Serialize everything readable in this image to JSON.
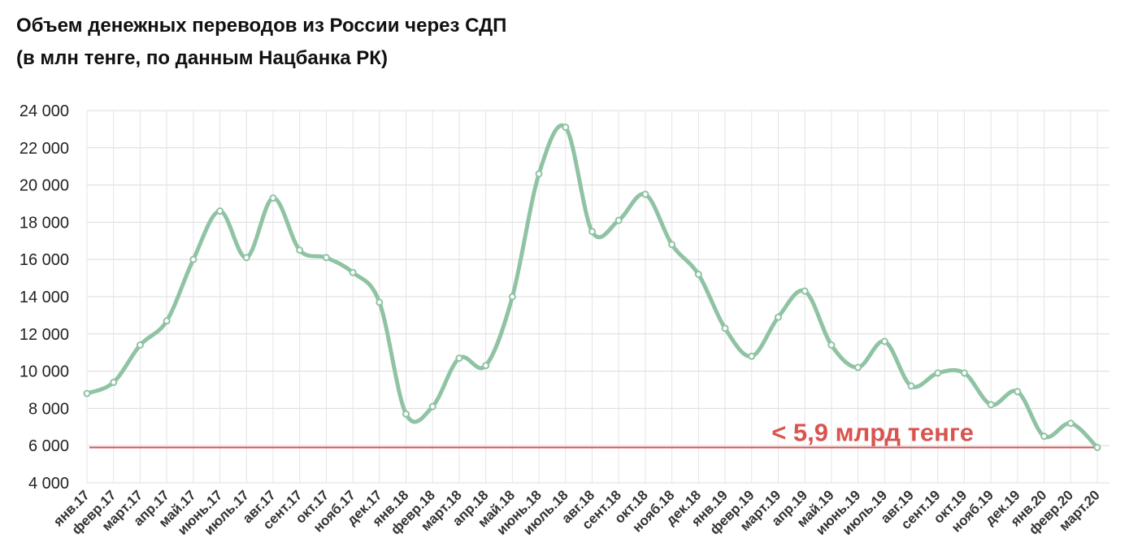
{
  "chart_data": {
    "type": "line",
    "title": "Объем денежных переводов из России через СДП",
    "subtitle": "(в млн тенге, по данным Нацбанка РК)",
    "xlabel": "",
    "ylabel": "",
    "ylim": [
      4000,
      24000
    ],
    "yticks": [
      4000,
      6000,
      8000,
      10000,
      12000,
      14000,
      16000,
      18000,
      20000,
      22000,
      24000
    ],
    "ytick_labels": [
      "4 000",
      "6 000",
      "8 000",
      "10 000",
      "12 000",
      "14 000",
      "16 000",
      "18 000",
      "20 000",
      "22 000",
      "24 000"
    ],
    "grid": true,
    "legend": "none",
    "categories": [
      "янв.17",
      "февр.17",
      "март.17",
      "апр.17",
      "май.17",
      "июнь.17",
      "июль.17",
      "авг.17",
      "сент.17",
      "окт.17",
      "нояб.17",
      "дек.17",
      "янв.18",
      "февр.18",
      "март.18",
      "апр.18",
      "май.18",
      "июнь.18",
      "июль.18",
      "авг.18",
      "сент.18",
      "окт.18",
      "нояб.18",
      "дек.18",
      "янв.19",
      "февр.19",
      "март.19",
      "апр.19",
      "май.19",
      "июнь.19",
      "июль.19",
      "авг.19",
      "сент.19",
      "окт.19",
      "нояб.19",
      "дек.19",
      "янв.20",
      "февр.20",
      "март.20"
    ],
    "series": [
      {
        "values": [
          8800,
          9400,
          11400,
          12700,
          16000,
          18600,
          16100,
          19300,
          16500,
          16100,
          15300,
          13700,
          7700,
          8100,
          10700,
          10300,
          14000,
          20600,
          23100,
          17500,
          18100,
          19500,
          16800,
          15200,
          12300,
          10800,
          12900,
          14300,
          11400,
          10200,
          11600,
          9200,
          9900,
          9900,
          8200,
          8900,
          6500,
          7200,
          5900
        ],
        "color": "#8fc3a4"
      }
    ],
    "reference_line": {
      "value": 5900,
      "color": "#d9534f"
    },
    "annotation": {
      "text": "< 5,9 млрд тенге",
      "color": "#d9534f"
    }
  }
}
